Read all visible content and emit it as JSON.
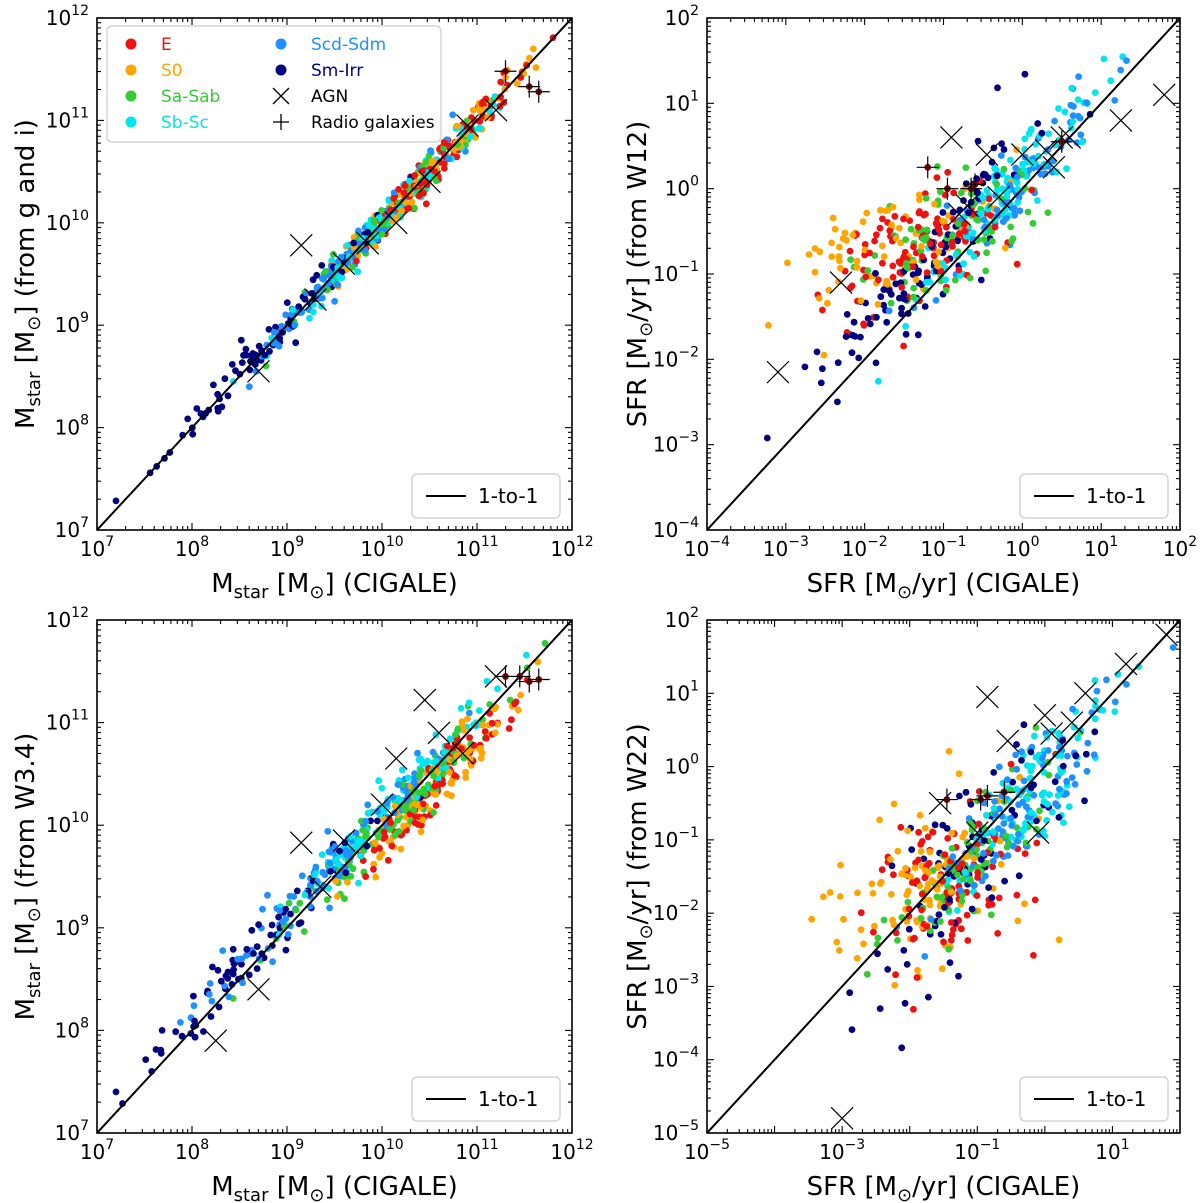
{
  "chart_data": [
    {
      "type": "scatter",
      "xlabel": {
        "main": "M",
        "sub": "star",
        "rest": " [M",
        "sun": "⊙",
        "tail": "] (CIGALE)"
      },
      "ylabel": {
        "main": "M",
        "sub": "star",
        "rest": " [M",
        "sun": "⊙",
        "tail": "] (from g and i)"
      },
      "xscale": "log",
      "yscale": "log",
      "xlim_exp": [
        7,
        12
      ],
      "ylim_exp": [
        7,
        12
      ],
      "xticks_exp": [
        7,
        8,
        9,
        10,
        11,
        12
      ],
      "yticks_exp": [
        7,
        8,
        9,
        10,
        11,
        12
      ],
      "reference_line": "1-to-1",
      "legend_lower_right": "1-to-1",
      "show_class_legend": true,
      "mode": "mass",
      "spread": 0.09,
      "seed": 11,
      "agn_points": [
        [
          9.15,
          9.78
        ],
        [
          11.2,
          11.1
        ],
        [
          10.15,
          10.0
        ],
        [
          9.85,
          9.8
        ],
        [
          9.3,
          9.25
        ],
        [
          8.7,
          8.55
        ],
        [
          9.6,
          9.6
        ],
        [
          10.9,
          10.95
        ],
        [
          10.5,
          10.4
        ]
      ],
      "radio_points": [
        [
          11.3,
          11.48
        ],
        [
          11.55,
          11.33
        ],
        [
          11.65,
          11.28
        ]
      ]
    },
    {
      "type": "scatter",
      "xlabel": {
        "main": "SFR [M",
        "sun": "⊙",
        "rest": "/yr] (CIGALE)"
      },
      "ylabel": {
        "main": "SFR [M",
        "sun": "⊙",
        "rest": "/yr] (from W12)"
      },
      "xscale": "log",
      "yscale": "log",
      "xlim_exp": [
        -4,
        2
      ],
      "ylim_exp": [
        -4,
        2
      ],
      "xticks_exp": [
        -4,
        -3,
        -2,
        -1,
        0,
        1,
        2
      ],
      "yticks_exp": [
        -4,
        -3,
        -2,
        -1,
        0,
        1,
        2
      ],
      "reference_line": "1-to-1",
      "legend_lower_right": "1-to-1",
      "show_class_legend": false,
      "mode": "sfr12",
      "seed": 23,
      "agn_points": [
        [
          -0.9,
          0.6
        ],
        [
          -0.45,
          0.4
        ],
        [
          -2.3,
          -1.1
        ],
        [
          -3.1,
          -2.15
        ],
        [
          -0.8,
          -0.3
        ],
        [
          0.0,
          0.4
        ],
        [
          0.3,
          0.45
        ],
        [
          0.5,
          0.6
        ],
        [
          0.6,
          0.6
        ],
        [
          1.25,
          0.8
        ],
        [
          1.8,
          1.1
        ],
        [
          -0.7,
          -0.2
        ],
        [
          -0.3,
          -0.1
        ],
        [
          0.4,
          0.25
        ]
      ],
      "radio_points": [
        [
          -1.2,
          0.25
        ],
        [
          -0.95,
          0.0
        ],
        [
          -0.6,
          0.05
        ],
        [
          -0.65,
          0.0
        ],
        [
          0.5,
          0.55
        ]
      ]
    },
    {
      "type": "scatter",
      "xlabel": {
        "main": "M",
        "sub": "star",
        "rest": " [M",
        "sun": "⊙",
        "tail": "] (CIGALE)"
      },
      "ylabel": {
        "main": "M",
        "sub": "star",
        "rest": " [M",
        "sun": "⊙",
        "tail": "] (from W3.4)"
      },
      "xscale": "log",
      "yscale": "log",
      "xlim_exp": [
        7,
        12
      ],
      "ylim_exp": [
        7,
        12
      ],
      "xticks_exp": [
        7,
        8,
        9,
        10,
        11,
        12
      ],
      "yticks_exp": [
        7,
        8,
        9,
        10,
        11,
        12
      ],
      "reference_line": "1-to-1",
      "legend_lower_right": "1-to-1",
      "show_class_legend": false,
      "mode": "mass",
      "spread": 0.13,
      "seed": 37,
      "agn_points": [
        [
          9.15,
          9.83
        ],
        [
          10.45,
          11.22
        ],
        [
          10.15,
          10.65
        ],
        [
          9.6,
          9.85
        ],
        [
          8.25,
          7.9
        ],
        [
          8.7,
          8.4
        ],
        [
          9.35,
          9.4
        ],
        [
          10.6,
          10.9
        ],
        [
          11.2,
          11.45
        ],
        [
          10.85,
          10.7
        ],
        [
          10.0,
          10.2
        ]
      ],
      "radio_points": [
        [
          11.3,
          11.45
        ],
        [
          11.45,
          11.45
        ],
        [
          11.55,
          11.4
        ],
        [
          11.65,
          11.42
        ]
      ]
    },
    {
      "type": "scatter",
      "xlabel": {
        "main": "SFR [M",
        "sun": "⊙",
        "rest": "/yr] (CIGALE)"
      },
      "ylabel": {
        "main": "SFR [M",
        "sun": "⊙",
        "rest": "/yr] (from W22)"
      },
      "xscale": "log",
      "yscale": "log",
      "xlim_exp": [
        -5,
        2
      ],
      "ylim_exp": [
        -5,
        2
      ],
      "xticks_exp": [
        -5,
        -3,
        -1,
        1
      ],
      "yticks_exp": [
        -5,
        -4,
        -3,
        -2,
        -1,
        0,
        1,
        2
      ],
      "reference_line": "1-to-1",
      "legend_lower_right": "1-to-1",
      "show_class_legend": false,
      "mode": "sfr22",
      "seed": 53,
      "agn_points": [
        [
          -0.85,
          0.95
        ],
        [
          -0.55,
          0.35
        ],
        [
          -1.55,
          -0.5
        ],
        [
          -3.0,
          -4.8
        ],
        [
          -1.0,
          -0.9
        ],
        [
          0.0,
          0.7
        ],
        [
          0.1,
          0.45
        ],
        [
          0.6,
          1.0
        ],
        [
          1.2,
          1.4
        ],
        [
          1.8,
          1.8
        ],
        [
          -0.1,
          -0.9
        ],
        [
          0.4,
          0.6
        ]
      ],
      "radio_points": [
        [
          -1.45,
          -0.45
        ],
        [
          -0.95,
          -0.45
        ],
        [
          -0.85,
          -0.4
        ],
        [
          -0.6,
          -0.35
        ]
      ]
    }
  ],
  "legend": {
    "entries": [
      {
        "label": "E",
        "color": "#ee1111",
        "marker": "dot"
      },
      {
        "label": "S0",
        "color": "#ffa500",
        "marker": "dot"
      },
      {
        "label": "Sa-Sab",
        "color": "#33cc33",
        "marker": "dot"
      },
      {
        "label": "Sb-Sc",
        "color": "#00e5ee",
        "marker": "dot"
      },
      {
        "label": "Scd-Sdm",
        "color": "#1e90ff",
        "marker": "dot"
      },
      {
        "label": "Sm-Irr",
        "color": "#000080",
        "marker": "dot"
      },
      {
        "label": "AGN",
        "color": "#000000",
        "marker": "x"
      },
      {
        "label": "Radio galaxies",
        "color": "#000000",
        "marker": "plus"
      }
    ]
  },
  "tick_base": "10"
}
